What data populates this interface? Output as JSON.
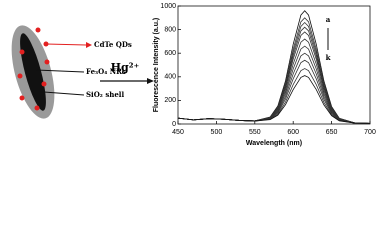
{
  "diagram": {
    "labels": [
      "CdTe QDs",
      "Fe₃O₄ NRs",
      "SiO₂ shell"
    ],
    "reagent": "Hg²⁺"
  },
  "chart_data": {
    "type": "line",
    "x_label": "Wavelength (nm)",
    "y_label": "Fluorescence Intensity (a.u.)",
    "annotations": [
      "a",
      "k"
    ],
    "x": [
      450,
      470,
      490,
      510,
      530,
      550,
      570,
      580,
      590,
      600,
      610,
      615,
      620,
      630,
      640,
      650,
      660,
      680,
      700
    ],
    "xlim": [
      450,
      700
    ],
    "xticks": [
      450,
      500,
      550,
      600,
      650,
      700
    ],
    "ylim": [
      0,
      1000
    ],
    "yticks": [
      0,
      200,
      400,
      600,
      800,
      1000
    ],
    "series": [
      {
        "color": "#111111",
        "values": [
          50,
          35,
          45,
          40,
          30,
          26,
          59,
          153,
          366,
          676,
          923,
          960,
          923,
          676,
          364,
          148,
          49,
          9,
          5
        ]
      },
      {
        "color": "#333333",
        "values": [
          50,
          35,
          45,
          40,
          30,
          26,
          56,
          144,
          344,
          634,
          866,
          900,
          866,
          634,
          342,
          139,
          46,
          9,
          5
        ]
      },
      {
        "color": "#333333",
        "values": [
          50,
          35,
          45,
          40,
          30,
          26,
          55,
          138,
          329,
          606,
          827,
          860,
          827,
          606,
          327,
          133,
          45,
          9,
          5
        ]
      },
      {
        "color": "#333333",
        "values": [
          50,
          35,
          45,
          40,
          30,
          26,
          53,
          133,
          314,
          578,
          789,
          820,
          789,
          578,
          312,
          128,
          43,
          9,
          5
        ]
      },
      {
        "color": "#333333",
        "values": [
          50,
          35,
          45,
          40,
          30,
          26,
          52,
          127,
          300,
          550,
          750,
          780,
          750,
          550,
          298,
          122,
          42,
          9,
          5
        ]
      },
      {
        "color": "#333333",
        "values": [
          50,
          35,
          45,
          40,
          30,
          26,
          49,
          119,
          278,
          509,
          693,
          720,
          693,
          509,
          276,
          114,
          39,
          9,
          5
        ]
      },
      {
        "color": "#333333",
        "values": [
          50,
          35,
          45,
          40,
          30,
          26,
          47,
          110,
          256,
          467,
          635,
          660,
          635,
          467,
          254,
          105,
          37,
          9,
          5
        ]
      },
      {
        "color": "#333333",
        "values": [
          50,
          35,
          45,
          40,
          30,
          26,
          45,
          102,
          233,
          425,
          577,
          600,
          577,
          425,
          231,
          97,
          35,
          9,
          5
        ]
      },
      {
        "color": "#333333",
        "values": [
          50,
          35,
          45,
          40,
          30,
          26,
          42,
          93,
          211,
          383,
          520,
          540,
          520,
          383,
          209,
          88,
          32,
          9,
          5
        ]
      },
      {
        "color": "#333333",
        "values": [
          50,
          35,
          45,
          40,
          30,
          25,
          40,
          83,
          186,
          334,
          452,
          470,
          452,
          334,
          184,
          78,
          30,
          8,
          5
        ]
      },
      {
        "color": "#111111",
        "values": [
          50,
          35,
          45,
          40,
          30,
          25,
          37,
          75,
          164,
          292,
          395,
          410,
          395,
          292,
          162,
          70,
          27,
          8,
          5
        ]
      }
    ]
  }
}
